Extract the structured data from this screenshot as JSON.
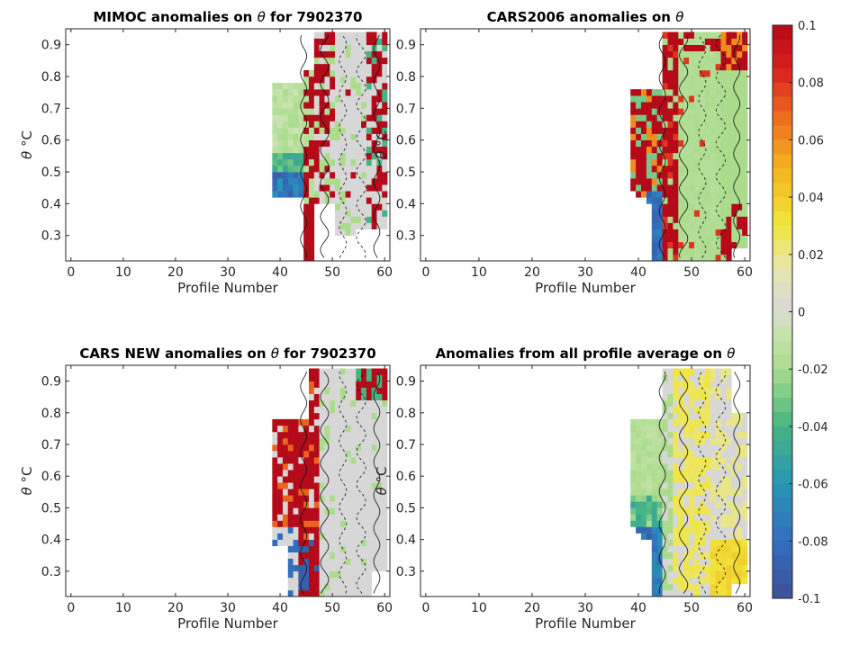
{
  "figure": {
    "colorbar": {
      "ticks": [
        "0.1",
        "0.08",
        "0.06",
        "0.04",
        "0.02",
        "0",
        "-0.02",
        "-0.04",
        "-0.06",
        "-0.08",
        "-0.1"
      ],
      "range": [
        -0.1,
        0.1
      ],
      "colormap": "parula-like diverging"
    }
  },
  "chart_data": [
    {
      "type": "heatmap",
      "title_parts": [
        "MIMOC anomalies on ",
        "θ",
        "  for 7902370"
      ],
      "xlabel": "Profile Number",
      "ylabel_parts": [
        "θ",
        " °C"
      ],
      "xlim": [
        -1,
        61
      ],
      "ylim": [
        0.22,
        0.95
      ],
      "xticks": [
        0,
        10,
        20,
        30,
        40,
        50,
        60
      ],
      "yticks": [
        0.3,
        0.4,
        0.5,
        0.6,
        0.7,
        0.8,
        0.9
      ],
      "pattern": "mimoc"
    },
    {
      "type": "heatmap",
      "title_parts": [
        "CARS2006 anomalies on ",
        "θ",
        ""
      ],
      "xlabel": "Profile Number",
      "ylabel_parts": [
        "θ",
        " °C"
      ],
      "xlim": [
        -1,
        61
      ],
      "ylim": [
        0.22,
        0.95
      ],
      "xticks": [
        0,
        10,
        20,
        30,
        40,
        50,
        60
      ],
      "yticks": [
        0.3,
        0.4,
        0.5,
        0.6,
        0.7,
        0.8,
        0.9
      ],
      "pattern": "cars2006"
    },
    {
      "type": "heatmap",
      "title_parts": [
        "CARS NEW anomalies on ",
        "θ",
        " for 7902370"
      ],
      "xlabel": "Profile Number",
      "ylabel_parts": [
        "θ",
        " °C"
      ],
      "xlim": [
        -1,
        61
      ],
      "ylim": [
        0.22,
        0.95
      ],
      "xticks": [
        0,
        10,
        20,
        30,
        40,
        50,
        60
      ],
      "yticks": [
        0.3,
        0.4,
        0.5,
        0.6,
        0.7,
        0.8,
        0.9
      ],
      "pattern": "carsnew"
    },
    {
      "type": "heatmap",
      "title_parts": [
        "Anomalies from all profile average on ",
        "θ",
        ""
      ],
      "xlabel": "Profile Number",
      "ylabel_parts": [
        "θ",
        " °C"
      ],
      "xlim": [
        -1,
        61
      ],
      "ylim": [
        0.22,
        0.95
      ],
      "xticks": [
        0,
        10,
        20,
        30,
        40,
        50,
        60
      ],
      "yticks": [
        0.3,
        0.4,
        0.5,
        0.6,
        0.7,
        0.8,
        0.9
      ],
      "pattern": "allavg"
    }
  ]
}
